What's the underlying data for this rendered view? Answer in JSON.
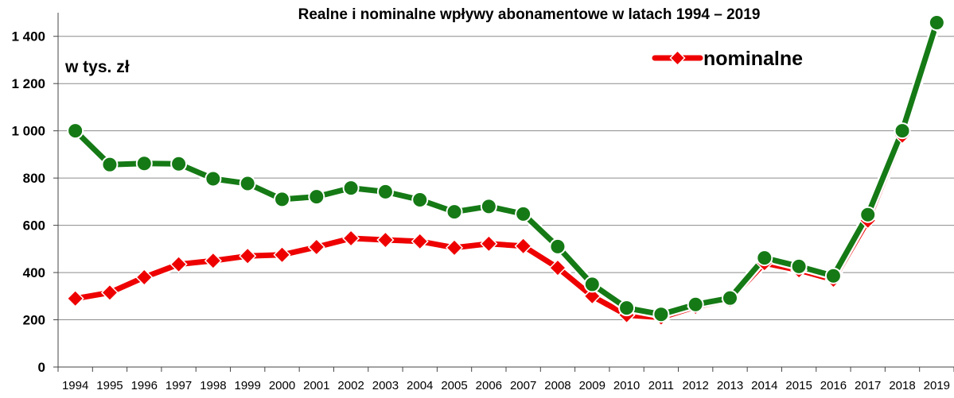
{
  "chart_data": {
    "type": "line",
    "title": "Realne i nominalne wpływy abonamentowe w latach 1994 – 2019",
    "unit_label": "w tys. zł",
    "xlabel": "",
    "ylabel": "",
    "ylim": [
      0,
      1500
    ],
    "yticks": [
      0,
      200,
      400,
      600,
      800,
      1000,
      1200,
      1400
    ],
    "ytick_labels": [
      "0",
      "200",
      "400",
      "600",
      "800",
      "1 000",
      "1 200",
      "1 400"
    ],
    "grid": true,
    "legend_position": "top-right",
    "categories": [
      "1994",
      "1995",
      "1996",
      "1997",
      "1998",
      "1999",
      "2000",
      "2001",
      "2002",
      "2003",
      "2004",
      "2005",
      "2006",
      "2007",
      "2008",
      "2009",
      "2010",
      "2011",
      "2012",
      "2013",
      "2014",
      "2015",
      "2016",
      "2017",
      "2018",
      "2019"
    ],
    "series": [
      {
        "name": "nominalne",
        "color": "#ee0000",
        "marker": "diamond",
        "in_legend": true,
        "values": [
          290,
          315,
          380,
          435,
          450,
          470,
          475,
          508,
          545,
          538,
          532,
          505,
          522,
          512,
          420,
          300,
          220,
          210,
          255,
          285,
          440,
          410,
          370,
          620,
          980,
          1455
        ]
      },
      {
        "name": "",
        "color": "#157a15",
        "marker": "circle",
        "in_legend": false,
        "values": [
          1000,
          857,
          862,
          860,
          797,
          777,
          710,
          721,
          758,
          742,
          708,
          657,
          680,
          648,
          510,
          350,
          250,
          223,
          265,
          292,
          462,
          426,
          386,
          645,
          1000,
          1458
        ]
      }
    ]
  }
}
